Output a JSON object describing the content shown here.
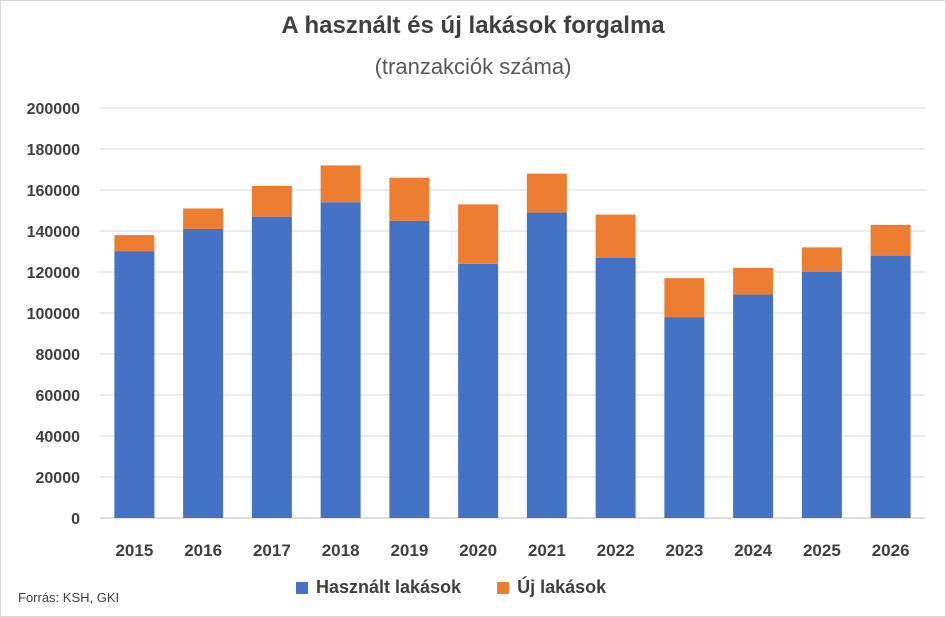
{
  "header": {
    "title": "A használt és új lakások forgalma",
    "subtitle": "(tranzakciók száma)"
  },
  "source": "Forrás: KSH, GKI",
  "colors": {
    "used": "#4472c4",
    "new": "#ed7d31",
    "grid": "#d9d9d9"
  },
  "chart_data": {
    "type": "bar",
    "stacked": true,
    "title": "A használt és új lakások forgalma",
    "subtitle": "(tranzakciók száma)",
    "categories": [
      "2015",
      "2016",
      "2017",
      "2018",
      "2019",
      "2020",
      "2021",
      "2022",
      "2023",
      "2024",
      "2025",
      "2026"
    ],
    "series": [
      {
        "name": "Használt lakások",
        "values": [
          130000,
          141000,
          147000,
          154000,
          145000,
          124000,
          149000,
          127000,
          98000,
          109000,
          120000,
          128000
        ]
      },
      {
        "name": "Új lakások",
        "values": [
          8000,
          10000,
          15000,
          18000,
          21000,
          29000,
          19000,
          21000,
          19000,
          13000,
          12000,
          15000
        ]
      }
    ],
    "yticks": [
      "0",
      "20000",
      "40000",
      "60000",
      "80000",
      "100000",
      "120000",
      "140000",
      "160000",
      "180000",
      "200000"
    ],
    "ylim": [
      0,
      200000
    ],
    "grid": true,
    "legend_position": "bottom"
  }
}
